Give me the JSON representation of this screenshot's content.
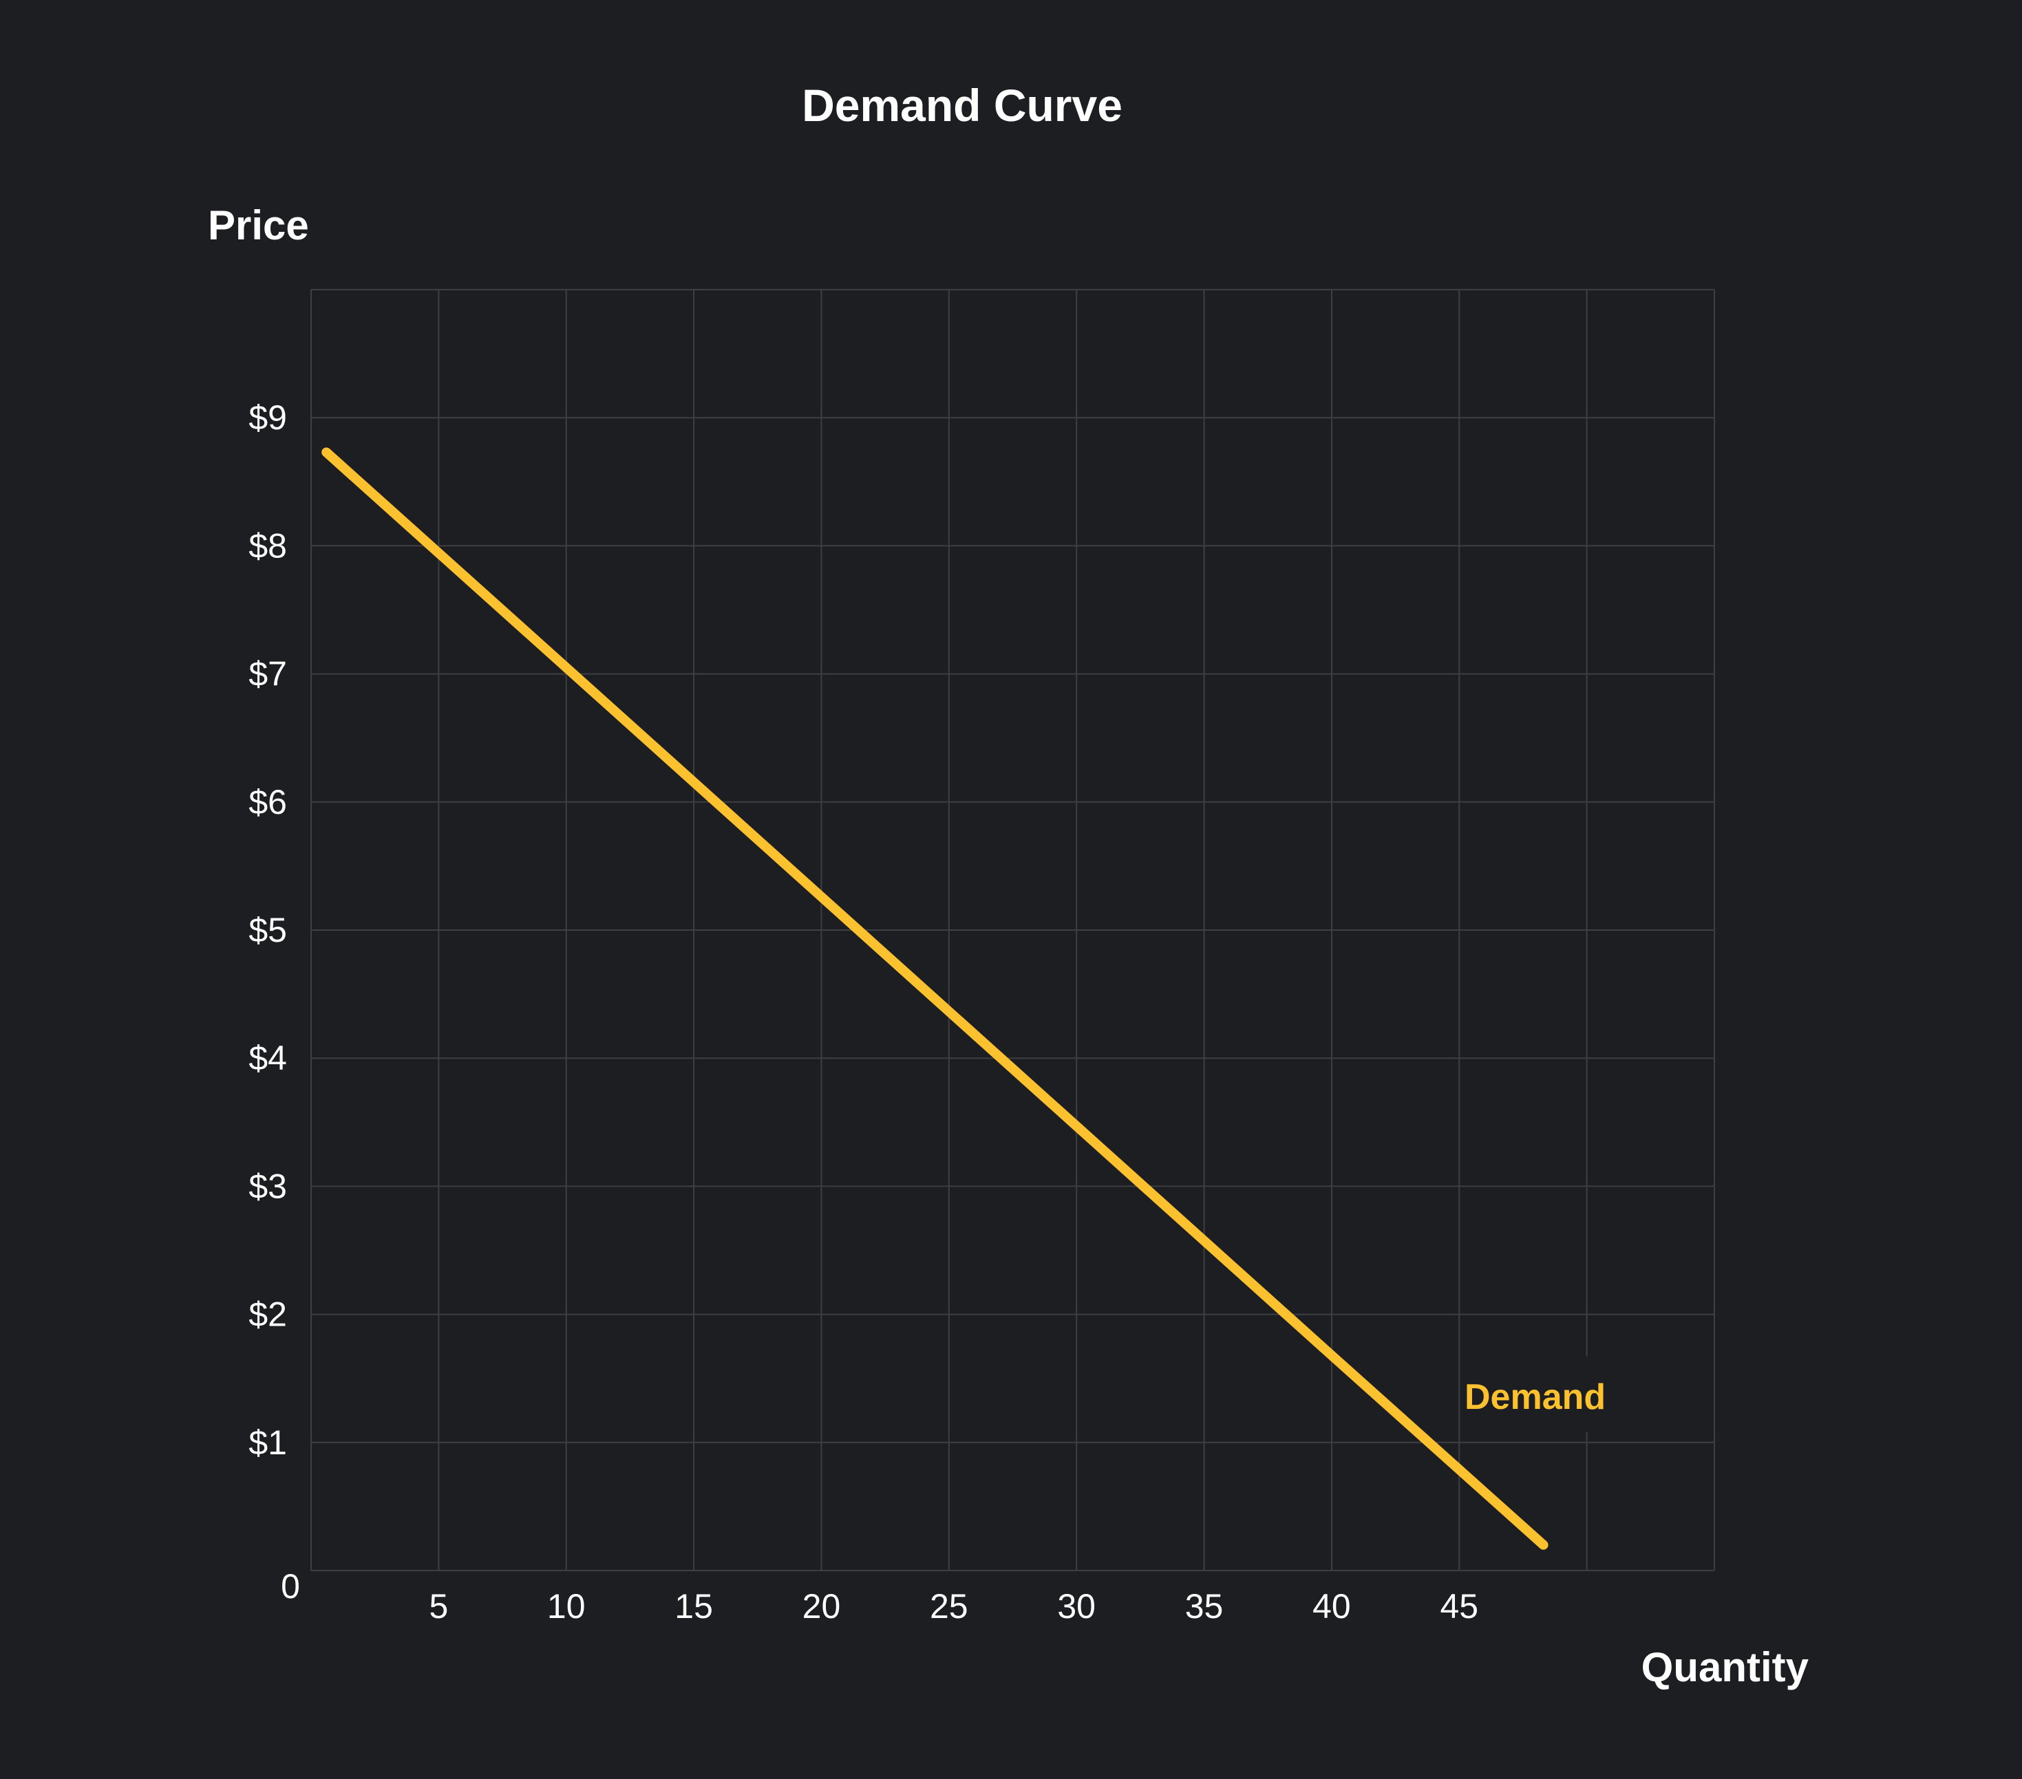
{
  "chart_data": {
    "type": "line",
    "title": "Demand Curve",
    "xlabel": "Quantity",
    "ylabel": "Price",
    "xlim": [
      0,
      55
    ],
    "ylim": [
      0,
      10
    ],
    "grid": true,
    "x_ticks": [
      5,
      10,
      15,
      20,
      25,
      30,
      35,
      40,
      45
    ],
    "x_tick_labels": [
      "5",
      "10",
      "15",
      "20",
      "25",
      "30",
      "35",
      "40",
      "45"
    ],
    "y_ticks": [
      1,
      2,
      3,
      4,
      5,
      6,
      7,
      8,
      9
    ],
    "y_tick_labels": [
      "$1",
      "$2",
      "$3",
      "$4",
      "$5",
      "$6",
      "$7",
      "$8",
      "$9"
    ],
    "origin_label": "0",
    "legend_position": "inline-label",
    "series": [
      {
        "name": "Demand",
        "color": "#fbc12f",
        "x": [
          0.6,
          10,
          20,
          30,
          40,
          48.3
        ],
        "y": [
          8.73,
          7.05,
          5.26,
          3.47,
          1.68,
          0.2
        ]
      }
    ],
    "annotations": [
      {
        "text": "Demand",
        "x": 48.5,
        "y": 1.35,
        "color": "#fbc12f"
      }
    ]
  },
  "colors": {
    "background": "#1d1e21",
    "grid": "#3e3f43",
    "text": "#ffffff",
    "accent": "#fbc12f"
  }
}
